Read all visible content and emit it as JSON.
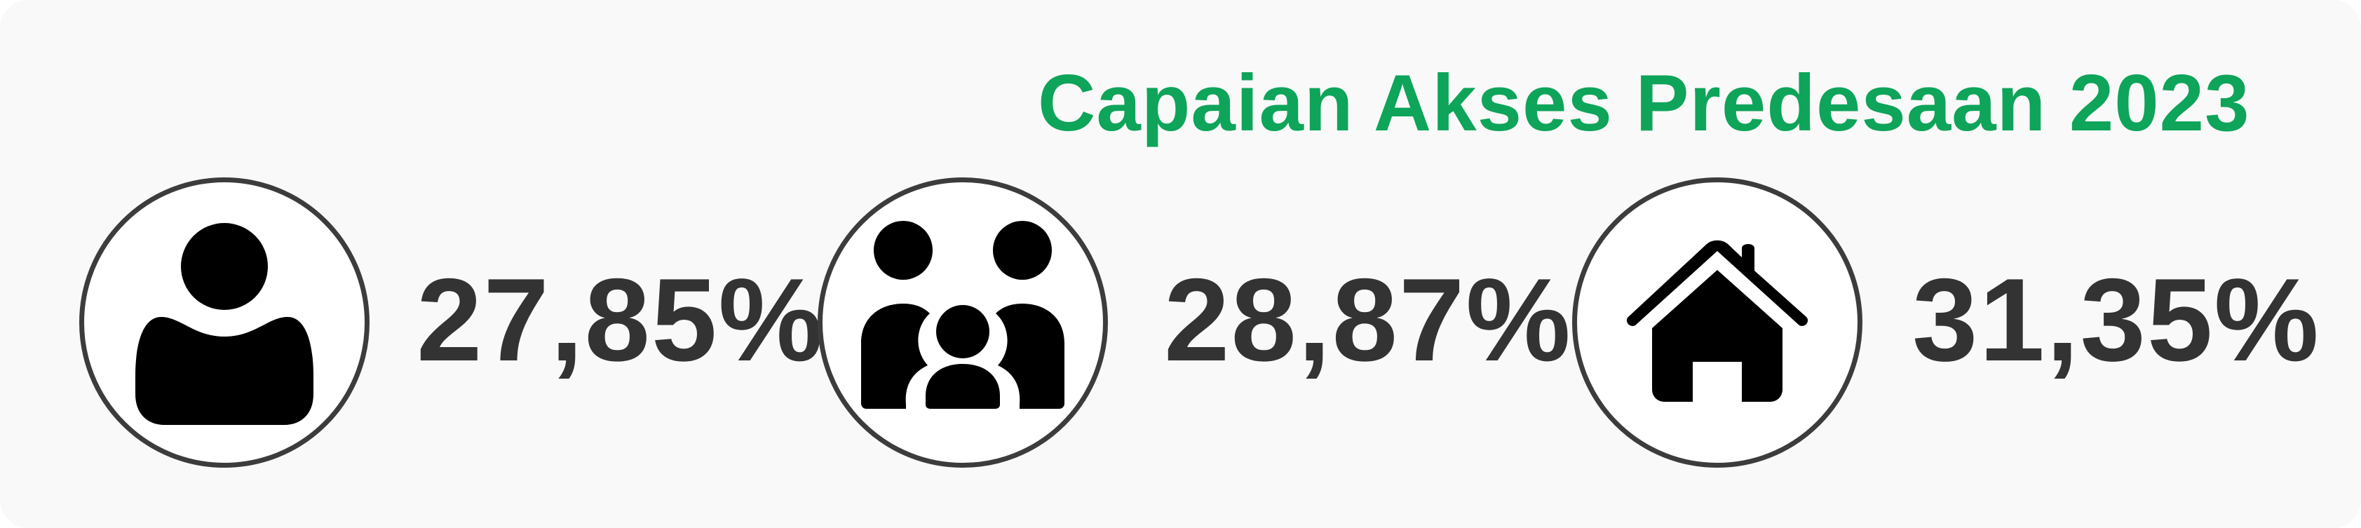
{
  "title": "Capaian Akses Predesaan 2023",
  "colors": {
    "title": "#0ea45a",
    "value": "#333333",
    "icon": "#000000",
    "icon_ring": "#3c3c3c"
  },
  "stats": [
    {
      "icon": "person-icon",
      "value": "27,85%"
    },
    {
      "icon": "family-icon",
      "value": "28,87%"
    },
    {
      "icon": "house-icon",
      "value": "31,35%"
    }
  ]
}
